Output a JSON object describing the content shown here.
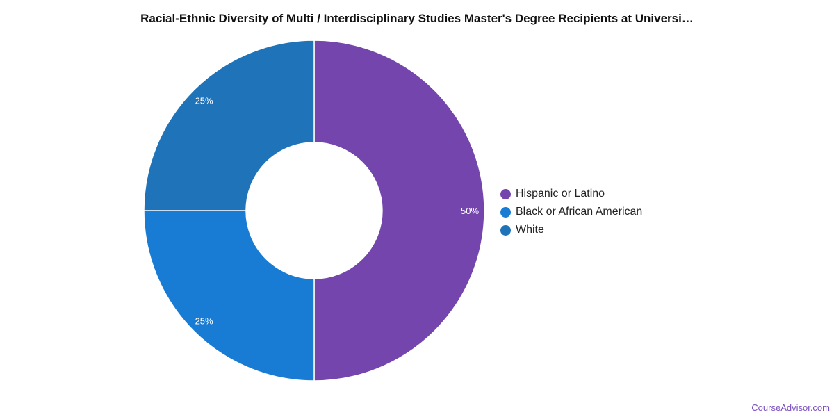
{
  "chart_data": {
    "type": "donut",
    "title": "Racial-Ethnic Diversity of Multi / Interdisciplinary Studies Master's Degree Recipients at Universi…",
    "series": [
      {
        "name": "Hispanic or Latino",
        "value": 50,
        "label": "50%",
        "color": "#7446ad"
      },
      {
        "name": "Black or African American",
        "value": 25,
        "label": "25%",
        "color": "#187bd4"
      },
      {
        "name": "White",
        "value": 25,
        "label": "25%",
        "color": "#1f73b9"
      }
    ],
    "legend_position": "right"
  },
  "footer": {
    "source": "CourseAdvisor.com"
  }
}
